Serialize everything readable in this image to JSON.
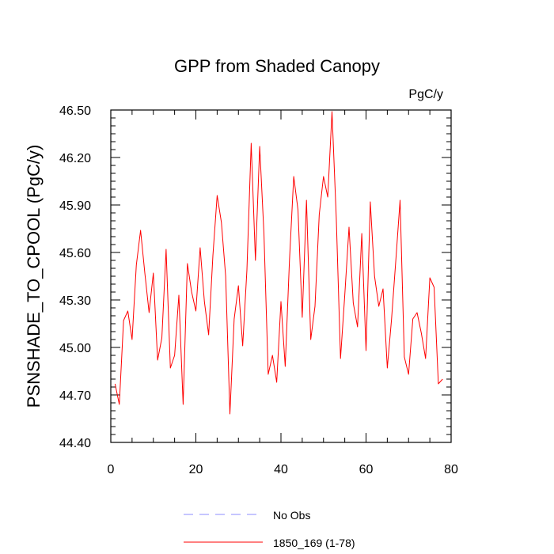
{
  "chart_data": {
    "type": "line",
    "title": "GPP from Shaded Canopy",
    "units_label": "PgC/y",
    "xlabel": "",
    "ylabel": "PSNSHADE_TO_CPOOL  (PgC/y)",
    "xlim": [
      0,
      80
    ],
    "ylim": [
      44.4,
      46.5
    ],
    "x_major_ticks": [
      0,
      20,
      40,
      60,
      80
    ],
    "x_tick_labels": [
      "0",
      "20",
      "40",
      "60",
      "80"
    ],
    "x_minor_step": 5,
    "y_major_ticks": [
      44.4,
      44.7,
      45.0,
      45.3,
      45.6,
      45.9,
      46.2,
      46.5
    ],
    "y_tick_labels": [
      "44.40",
      "44.70",
      "45.00",
      "45.30",
      "45.60",
      "45.90",
      "46.20",
      "46.50"
    ],
    "y_minor_step": 0.05,
    "grid": false,
    "legend_position": "bottom-center",
    "legend": [
      {
        "name": "No Obs",
        "color": "#8c8cff",
        "style": "dashed"
      },
      {
        "name": "1850_169 (1-78)",
        "color": "#ff0000",
        "style": "solid"
      }
    ],
    "series": [
      {
        "name": "1850_169 (1-78)",
        "color": "#ff0000",
        "x": [
          1,
          2,
          3,
          4,
          5,
          6,
          7,
          8,
          9,
          10,
          11,
          12,
          13,
          14,
          15,
          16,
          17,
          18,
          19,
          20,
          21,
          22,
          23,
          24,
          25,
          26,
          27,
          28,
          29,
          30,
          31,
          32,
          33,
          34,
          35,
          36,
          37,
          38,
          39,
          40,
          41,
          42,
          43,
          44,
          45,
          46,
          47,
          48,
          49,
          50,
          51,
          52,
          53,
          54,
          55,
          56,
          57,
          58,
          59,
          60,
          61,
          62,
          63,
          64,
          65,
          66,
          67,
          68,
          69,
          70,
          71,
          72,
          73,
          74,
          75,
          76,
          77,
          78
        ],
        "values": [
          44.77,
          44.64,
          45.17,
          45.23,
          45.05,
          45.52,
          45.74,
          45.47,
          45.22,
          45.47,
          44.92,
          45.06,
          45.62,
          44.87,
          44.95,
          45.33,
          44.64,
          45.53,
          45.35,
          45.23,
          45.63,
          45.29,
          45.08,
          45.58,
          45.96,
          45.79,
          45.45,
          44.58,
          45.18,
          45.39,
          45.01,
          45.49,
          46.29,
          45.55,
          46.27,
          45.72,
          44.83,
          44.95,
          44.78,
          45.29,
          44.88,
          45.55,
          46.08,
          45.87,
          45.19,
          45.93,
          45.05,
          45.26,
          45.84,
          46.08,
          45.95,
          46.49,
          45.82,
          44.93,
          45.33,
          45.76,
          45.28,
          45.13,
          45.72,
          44.98,
          45.92,
          45.45,
          45.26,
          45.37,
          44.87,
          45.18,
          45.55,
          45.93,
          44.94,
          44.83,
          45.18,
          45.22,
          45.09,
          44.93,
          45.44,
          45.38,
          44.77,
          44.8
        ]
      },
      {
        "name": "No Obs",
        "color": "#8c8cff",
        "x": [],
        "values": []
      }
    ]
  }
}
